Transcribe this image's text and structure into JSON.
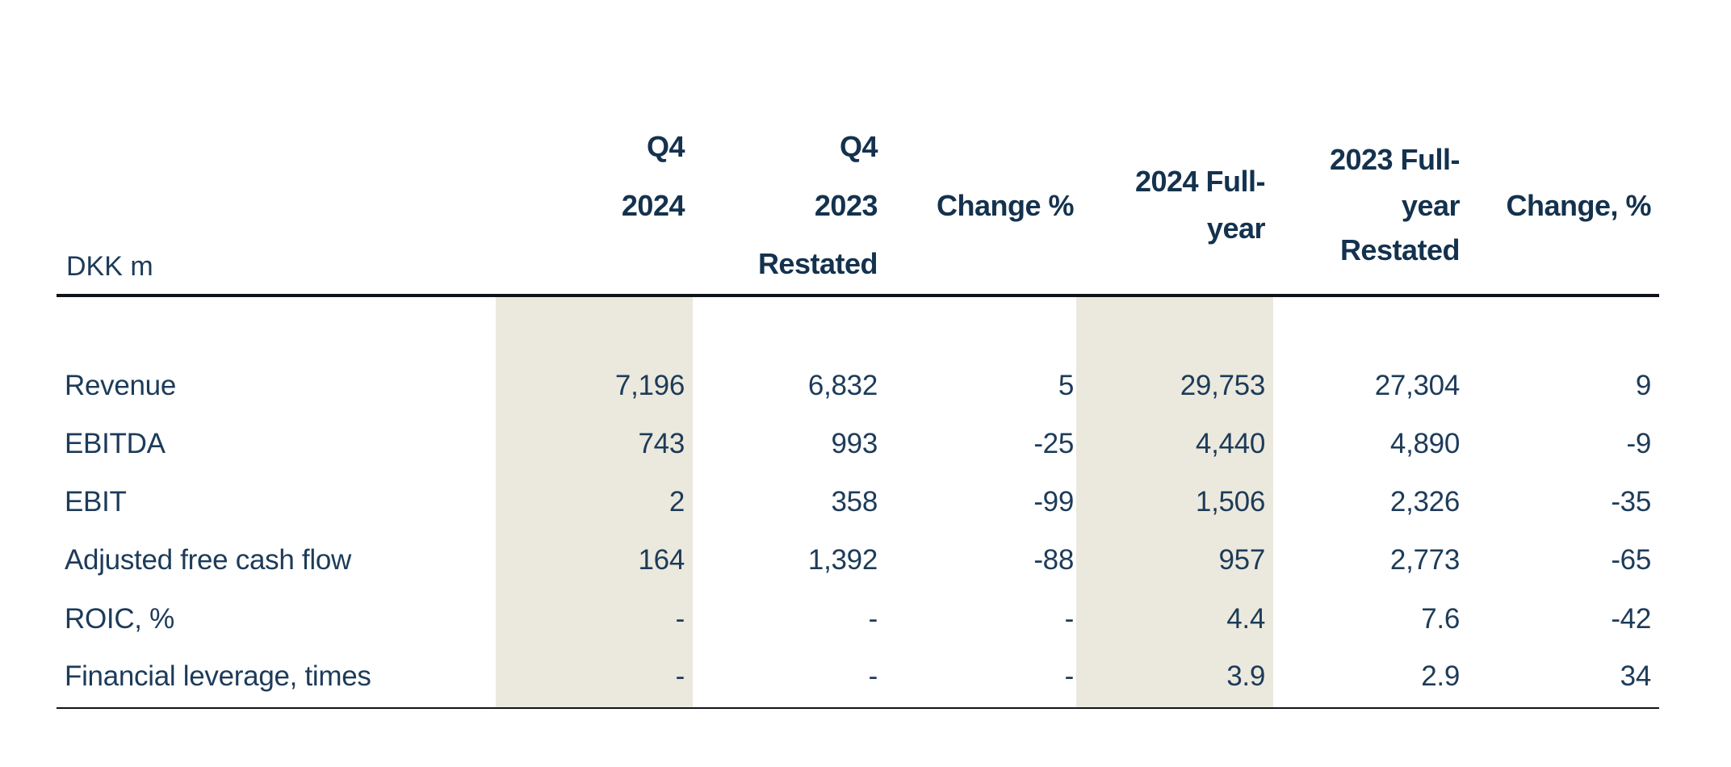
{
  "table": {
    "unit_label": "DKK m",
    "columns": [
      {
        "id": "q4-2024",
        "highlighted": true,
        "lines": [
          "Q4",
          "2024"
        ]
      },
      {
        "id": "q4-2023-restated",
        "highlighted": false,
        "lines": [
          "Q4",
          "2023",
          "Restated"
        ]
      },
      {
        "id": "change-pct-quarter",
        "highlighted": false,
        "lines": [
          "Change %"
        ]
      },
      {
        "id": "full-year-2024",
        "highlighted": true,
        "lines": [
          "2024 Full-",
          "year"
        ]
      },
      {
        "id": "full-year-2023-restated",
        "highlighted": false,
        "lines": [
          "2023 Full-",
          "year",
          "Restated"
        ]
      },
      {
        "id": "change-pct-full-year",
        "highlighted": false,
        "lines": [
          "Change, %"
        ]
      }
    ],
    "rows": [
      {
        "label": "Revenue",
        "values": [
          "7,196",
          "6,832",
          "5",
          "29,753",
          "27,304",
          "9"
        ]
      },
      {
        "label": "EBITDA",
        "values": [
          "743",
          "993",
          "-25",
          "4,440",
          "4,890",
          "-9"
        ]
      },
      {
        "label": "EBIT",
        "values": [
          "2",
          "358",
          "-99",
          "1,506",
          "2,326",
          "-35"
        ]
      },
      {
        "label": "Adjusted free cash flow",
        "values": [
          "164",
          "1,392",
          "-88",
          "957",
          "2,773",
          "-65"
        ]
      },
      {
        "label": "ROIC, %",
        "values": [
          "-",
          "-",
          "-",
          "4.4",
          "7.6",
          "-42"
        ]
      },
      {
        "label": "Financial leverage, times",
        "values": [
          "-",
          "-",
          "-",
          "3.9",
          "2.9",
          "34"
        ]
      }
    ],
    "colors": {
      "background": "#ffffff",
      "highlight_stripe": "#ebe9dd",
      "header_text": "#14324e",
      "body_text": "#1d3b59",
      "rule": "#101418"
    }
  }
}
